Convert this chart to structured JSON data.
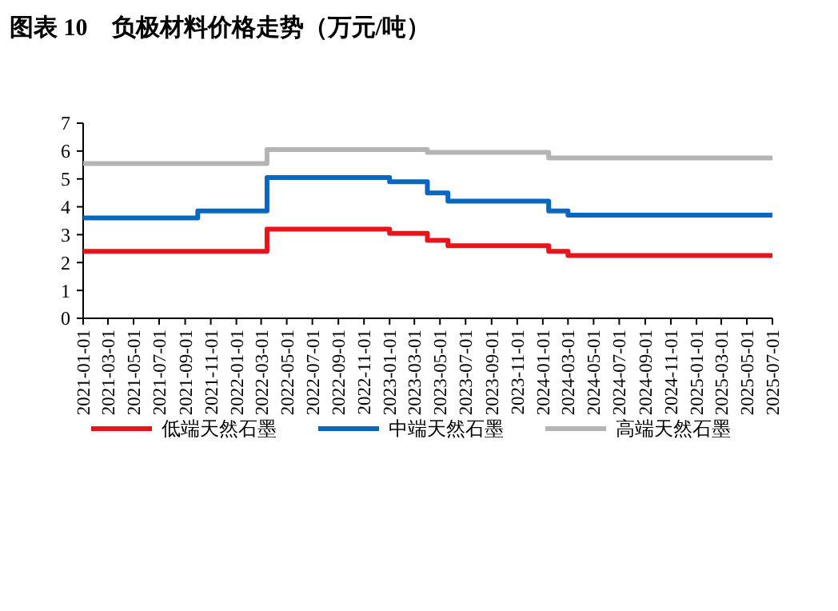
{
  "chart_data": {
    "type": "step",
    "title": "图表 10　负极材料价格走势（万元/吨）",
    "xlim": [
      "2021-01-01",
      "2025-07-01"
    ],
    "xticks": [
      "2021-01-01",
      "2021-03-01",
      "2021-05-01",
      "2021-07-01",
      "2021-09-01",
      "2021-11-01",
      "2022-01-01",
      "2022-03-01",
      "2022-05-01",
      "2022-07-01",
      "2022-09-01",
      "2022-11-01",
      "2023-01-01",
      "2023-03-01",
      "2023-05-01",
      "2023-07-01",
      "2023-09-01",
      "2023-11-01",
      "2024-01-01",
      "2024-03-01",
      "2024-05-01",
      "2024-07-01",
      "2024-09-01",
      "2024-11-01",
      "2025-01-01",
      "2025-03-01",
      "2025-05-01",
      "2025-07-01"
    ],
    "ylim": [
      0,
      7
    ],
    "yticks": [
      0,
      1,
      2,
      3,
      4,
      5,
      6,
      7
    ],
    "grid": false,
    "legend": "bottom",
    "line_style": "solid",
    "marker": "none",
    "series": [
      {
        "name": "低端天然石墨",
        "color": "#e8141c",
        "x": [
          "2021-01-01",
          "2022-03-15",
          "2023-01-01",
          "2023-04-01",
          "2023-05-20",
          "2024-01-15",
          "2024-03-01",
          "2025-07-01"
        ],
        "values": [
          2.4,
          3.2,
          3.05,
          2.8,
          2.6,
          2.4,
          2.25,
          2.25
        ]
      },
      {
        "name": "中端天然石墨",
        "color": "#0b66c0",
        "x": [
          "2021-01-01",
          "2021-10-01",
          "2022-03-15",
          "2023-01-01",
          "2023-04-01",
          "2023-05-20",
          "2024-01-15",
          "2024-03-01",
          "2025-07-01"
        ],
        "values": [
          3.6,
          3.85,
          5.05,
          4.9,
          4.5,
          4.2,
          3.85,
          3.7,
          3.7
        ]
      },
      {
        "name": "高端天然石墨",
        "color": "#b4b4b4",
        "x": [
          "2021-01-01",
          "2022-03-15",
          "2023-04-01",
          "2024-01-15",
          "2025-07-01"
        ],
        "values": [
          5.55,
          6.05,
          5.95,
          5.75,
          5.75
        ]
      }
    ]
  }
}
